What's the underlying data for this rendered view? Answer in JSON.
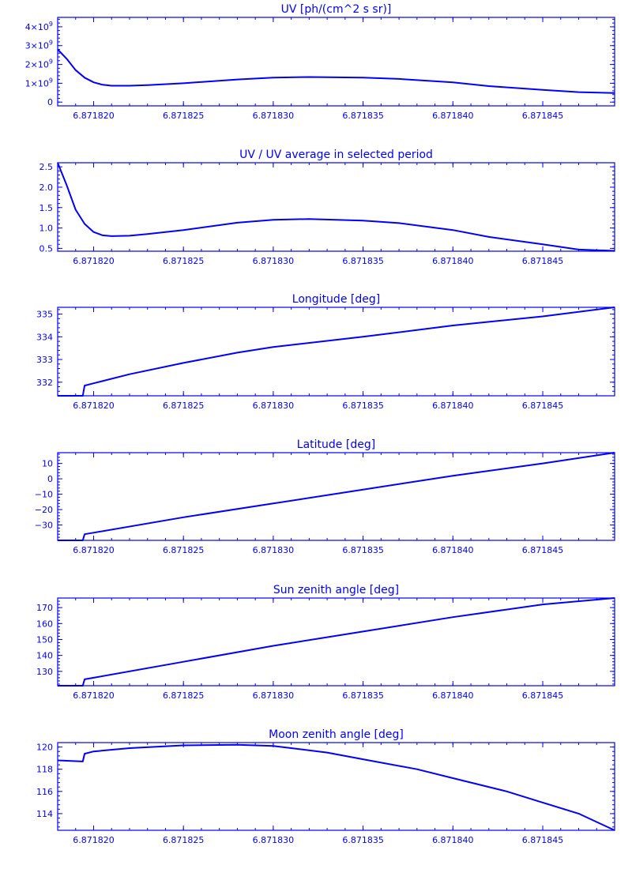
{
  "color": "#0000ff",
  "chart_data": [
    {
      "type": "line",
      "title": "UV [ph/(cm^2 s sr)]",
      "xlabel": "",
      "ylabel": "",
      "xlim": [
        6.871818,
        6.871849
      ],
      "xticks": [
        6.87182,
        6.871825,
        6.87183,
        6.871835,
        6.87184,
        6.871845
      ],
      "xtick_labels": [
        "6.871820",
        "6.871825",
        "6.871830",
        "6.871835",
        "6.871840",
        "6.871845"
      ],
      "ylim": [
        -200000000,
        4500000000
      ],
      "yticks": [
        0,
        1000000000,
        2000000000,
        3000000000,
        4000000000
      ],
      "ytick_labels": [
        {
          "base": "0",
          "exp": ""
        },
        {
          "base": "1×10",
          "exp": "9"
        },
        {
          "base": "2×10",
          "exp": "9"
        },
        {
          "base": "3×10",
          "exp": "9"
        },
        {
          "base": "4×10",
          "exp": "9"
        }
      ],
      "grid": false,
      "series": [
        {
          "x": [
            6.871818,
            6.8718185,
            6.871819,
            6.8718195,
            6.87182,
            6.8718205,
            6.871821,
            6.871822,
            6.871823,
            6.871825,
            6.871828,
            6.87183,
            6.871832,
            6.871835,
            6.871837,
            6.87184,
            6.871842,
            6.871845,
            6.871847,
            6.871849
          ],
          "y": [
            2800000000,
            2300000000,
            1700000000,
            1300000000,
            1050000000,
            920000000,
            870000000,
            870000000,
            900000000,
            1000000000,
            1200000000,
            1300000000,
            1330000000,
            1300000000,
            1230000000,
            1050000000,
            850000000,
            650000000,
            530000000,
            480000000
          ]
        }
      ]
    },
    {
      "type": "line",
      "title": "UV / UV average in selected period",
      "xlabel": "",
      "ylabel": "",
      "xlim": [
        6.871818,
        6.871849
      ],
      "xticks": [
        6.87182,
        6.871825,
        6.87183,
        6.871835,
        6.87184,
        6.871845
      ],
      "xtick_labels": [
        "6.871820",
        "6.871825",
        "6.871830",
        "6.871835",
        "6.871840",
        "6.871845"
      ],
      "ylim": [
        0.43,
        2.6
      ],
      "yticks": [
        0.5,
        1.0,
        1.5,
        2.0,
        2.5
      ],
      "ytick_labels": [
        {
          "base": "0.5",
          "exp": ""
        },
        {
          "base": "1.0",
          "exp": ""
        },
        {
          "base": "1.5",
          "exp": ""
        },
        {
          "base": "2.0",
          "exp": ""
        },
        {
          "base": "2.5",
          "exp": ""
        }
      ],
      "grid": false,
      "series": [
        {
          "x": [
            6.871818,
            6.8718185,
            6.871819,
            6.8718195,
            6.87182,
            6.8718205,
            6.871821,
            6.871822,
            6.871823,
            6.871825,
            6.871828,
            6.87183,
            6.871832,
            6.871835,
            6.871837,
            6.87184,
            6.871842,
            6.871845,
            6.871847,
            6.871849
          ],
          "y": [
            2.6,
            2.05,
            1.45,
            1.1,
            0.9,
            0.82,
            0.8,
            0.81,
            0.85,
            0.95,
            1.13,
            1.2,
            1.22,
            1.18,
            1.12,
            0.95,
            0.78,
            0.6,
            0.47,
            0.44
          ]
        }
      ]
    },
    {
      "type": "line",
      "title": "Longitude [deg]",
      "xlabel": "",
      "ylabel": "",
      "xlim": [
        6.871818,
        6.871849
      ],
      "xticks": [
        6.87182,
        6.871825,
        6.87183,
        6.871835,
        6.87184,
        6.871845
      ],
      "xtick_labels": [
        "6.871820",
        "6.871825",
        "6.871830",
        "6.871835",
        "6.871840",
        "6.871845"
      ],
      "ylim": [
        331.4,
        335.3
      ],
      "yticks": [
        332,
        333,
        334,
        335
      ],
      "ytick_labels": [
        {
          "base": "332",
          "exp": ""
        },
        {
          "base": "333",
          "exp": ""
        },
        {
          "base": "334",
          "exp": ""
        },
        {
          "base": "335",
          "exp": ""
        }
      ],
      "grid": false,
      "series": [
        {
          "x": [
            6.871818,
            6.8718194,
            6.8718195,
            6.87182,
            6.871822,
            6.871825,
            6.871828,
            6.87183,
            6.871835,
            6.87184,
            6.871845,
            6.871849
          ],
          "y": [
            331.4,
            331.4,
            331.85,
            331.95,
            332.35,
            332.85,
            333.3,
            333.55,
            334.0,
            334.5,
            334.9,
            335.3
          ]
        }
      ]
    },
    {
      "type": "line",
      "title": "Latitude [deg]",
      "xlabel": "",
      "ylabel": "",
      "xlim": [
        6.871818,
        6.871849
      ],
      "xticks": [
        6.87182,
        6.871825,
        6.87183,
        6.871835,
        6.87184,
        6.871845
      ],
      "xtick_labels": [
        "6.871820",
        "6.871825",
        "6.871830",
        "6.871835",
        "6.871840",
        "6.871845"
      ],
      "ylim": [
        -40,
        17
      ],
      "yticks": [
        -30,
        -20,
        -10,
        0,
        10
      ],
      "ytick_labels": [
        {
          "base": "−30",
          "exp": ""
        },
        {
          "base": "−20",
          "exp": ""
        },
        {
          "base": "−10",
          "exp": ""
        },
        {
          "base": "0",
          "exp": ""
        },
        {
          "base": "10",
          "exp": ""
        }
      ],
      "grid": false,
      "series": [
        {
          "x": [
            6.871818,
            6.8718194,
            6.8718195,
            6.87182,
            6.871825,
            6.87183,
            6.871835,
            6.87184,
            6.871845,
            6.871849
          ],
          "y": [
            -40,
            -40,
            -36,
            -35,
            -25,
            -16,
            -7,
            2,
            10,
            17
          ]
        }
      ]
    },
    {
      "type": "line",
      "title": "Sun zenith angle [deg]",
      "xlabel": "",
      "ylabel": "",
      "xlim": [
        6.871818,
        6.871849
      ],
      "xticks": [
        6.87182,
        6.871825,
        6.87183,
        6.871835,
        6.87184,
        6.871845
      ],
      "xtick_labels": [
        "6.871820",
        "6.871825",
        "6.871830",
        "6.871835",
        "6.871840",
        "6.871845"
      ],
      "ylim": [
        121,
        176
      ],
      "yticks": [
        130,
        140,
        150,
        160,
        170
      ],
      "ytick_labels": [
        {
          "base": "130",
          "exp": ""
        },
        {
          "base": "140",
          "exp": ""
        },
        {
          "base": "150",
          "exp": ""
        },
        {
          "base": "160",
          "exp": ""
        },
        {
          "base": "170",
          "exp": ""
        }
      ],
      "grid": false,
      "series": [
        {
          "x": [
            6.871818,
            6.8718194,
            6.8718195,
            6.87182,
            6.871825,
            6.87183,
            6.871835,
            6.87184,
            6.871845,
            6.871849
          ],
          "y": [
            121,
            121,
            125,
            126,
            136,
            146,
            155,
            164,
            172,
            176
          ]
        }
      ]
    },
    {
      "type": "line",
      "title": "Moon zenith angle [deg]",
      "xlabel": "",
      "ylabel": "",
      "xlim": [
        6.871818,
        6.871849
      ],
      "xticks": [
        6.87182,
        6.871825,
        6.87183,
        6.871835,
        6.87184,
        6.871845
      ],
      "xtick_labels": [
        "6.871820",
        "6.871825",
        "6.871830",
        "6.871835",
        "6.871840",
        "6.871845"
      ],
      "ylim": [
        112.5,
        120.4
      ],
      "yticks": [
        114,
        116,
        118,
        120
      ],
      "ytick_labels": [
        {
          "base": "114",
          "exp": ""
        },
        {
          "base": "116",
          "exp": ""
        },
        {
          "base": "118",
          "exp": ""
        },
        {
          "base": "120",
          "exp": ""
        }
      ],
      "grid": false,
      "series": [
        {
          "x": [
            6.871818,
            6.8718194,
            6.8718195,
            6.87182,
            6.871822,
            6.871825,
            6.871828,
            6.87183,
            6.871833,
            6.871835,
            6.871838,
            6.87184,
            6.871843,
            6.871845,
            6.871847,
            6.871849
          ],
          "y": [
            118.8,
            118.7,
            119.4,
            119.6,
            119.9,
            120.15,
            120.2,
            120.1,
            119.5,
            118.9,
            118.0,
            117.2,
            116.0,
            115.0,
            114.0,
            112.5
          ]
        }
      ]
    }
  ]
}
